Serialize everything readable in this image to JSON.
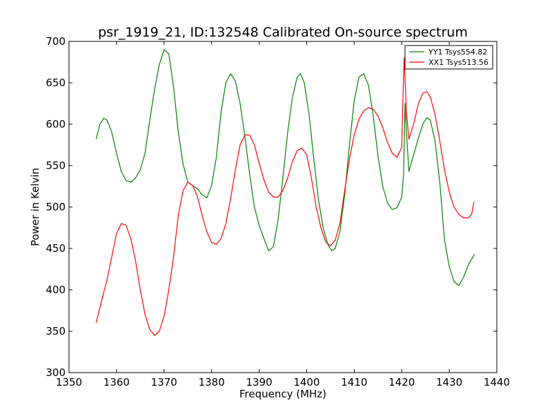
{
  "chart_data": {
    "type": "line",
    "title": "psr_1919_21, ID:132548 Calibrated On-source spectrum",
    "xlabel": "Frequency (MHz)",
    "ylabel": "Power in Kelvin",
    "xlim": [
      1350,
      1440
    ],
    "ylim": [
      300,
      700
    ],
    "xticks": [
      "1350",
      "1360",
      "1370",
      "1380",
      "1390",
      "1400",
      "1410",
      "1420",
      "1430",
      "1440"
    ],
    "yticks": [
      "300",
      "350",
      "400",
      "450",
      "500",
      "550",
      "600",
      "650",
      "700"
    ],
    "grid": false,
    "legend_position": "top-right",
    "series": [
      {
        "name": "YY1 Tsys554.82",
        "color": "#008000",
        "points": [
          [
            1355.7,
            582
          ],
          [
            1356.5,
            600
          ],
          [
            1357.3,
            607
          ],
          [
            1358,
            605
          ],
          [
            1359,
            590
          ],
          [
            1360,
            565
          ],
          [
            1361,
            543
          ],
          [
            1362,
            532
          ],
          [
            1363,
            530
          ],
          [
            1364,
            535
          ],
          [
            1365,
            545
          ],
          [
            1366,
            565
          ],
          [
            1367,
            605
          ],
          [
            1368,
            642
          ],
          [
            1369,
            672
          ],
          [
            1370,
            690
          ],
          [
            1371,
            685
          ],
          [
            1372,
            645
          ],
          [
            1373,
            590
          ],
          [
            1374,
            552
          ],
          [
            1375,
            530
          ],
          [
            1376,
            526
          ],
          [
            1377,
            522
          ],
          [
            1378,
            515
          ],
          [
            1379,
            511
          ],
          [
            1380,
            526
          ],
          [
            1381,
            560
          ],
          [
            1382,
            615
          ],
          [
            1383,
            650
          ],
          [
            1384,
            661
          ],
          [
            1385,
            652
          ],
          [
            1386,
            625
          ],
          [
            1387,
            585
          ],
          [
            1388,
            540
          ],
          [
            1389,
            500
          ],
          [
            1390,
            478
          ],
          [
            1391,
            462
          ],
          [
            1392,
            447
          ],
          [
            1393,
            452
          ],
          [
            1394,
            485
          ],
          [
            1395,
            535
          ],
          [
            1396,
            590
          ],
          [
            1397,
            632
          ],
          [
            1398,
            657
          ],
          [
            1398.7,
            661
          ],
          [
            1399.5,
            650
          ],
          [
            1400.5,
            612
          ],
          [
            1401.5,
            558
          ],
          [
            1402.5,
            508
          ],
          [
            1403.5,
            474
          ],
          [
            1404.5,
            454
          ],
          [
            1405.3,
            447
          ],
          [
            1406,
            450
          ],
          [
            1407,
            470
          ],
          [
            1408,
            515
          ],
          [
            1409,
            575
          ],
          [
            1410,
            628
          ],
          [
            1411,
            657
          ],
          [
            1412,
            661
          ],
          [
            1413,
            647
          ],
          [
            1414,
            610
          ],
          [
            1415,
            562
          ],
          [
            1416,
            525
          ],
          [
            1417,
            505
          ],
          [
            1418,
            497
          ],
          [
            1419,
            499
          ],
          [
            1420,
            512
          ],
          [
            1420.4,
            540
          ],
          [
            1420.7,
            625
          ],
          [
            1421,
            590
          ],
          [
            1421.5,
            543
          ],
          [
            1422.5,
            563
          ],
          [
            1423.5,
            583
          ],
          [
            1424.5,
            601
          ],
          [
            1425.3,
            608
          ],
          [
            1426,
            605
          ],
          [
            1427,
            580
          ],
          [
            1428,
            530
          ],
          [
            1429,
            460
          ],
          [
            1430,
            428
          ],
          [
            1431,
            410
          ],
          [
            1432,
            405
          ],
          [
            1433,
            415
          ],
          [
            1434,
            430
          ],
          [
            1435.3,
            443
          ]
        ]
      },
      {
        "name": "XX1 Tsys513.56",
        "color": "#ff0000",
        "points": [
          [
            1355.7,
            360
          ],
          [
            1357,
            390
          ],
          [
            1358,
            412
          ],
          [
            1359,
            440
          ],
          [
            1360,
            468
          ],
          [
            1361,
            480
          ],
          [
            1362,
            478
          ],
          [
            1363,
            462
          ],
          [
            1364,
            435
          ],
          [
            1365,
            400
          ],
          [
            1366,
            370
          ],
          [
            1367,
            352
          ],
          [
            1368,
            345
          ],
          [
            1369,
            350
          ],
          [
            1370,
            368
          ],
          [
            1371,
            400
          ],
          [
            1372,
            440
          ],
          [
            1373,
            490
          ],
          [
            1374,
            520
          ],
          [
            1375,
            530
          ],
          [
            1376,
            526
          ],
          [
            1377,
            513
          ],
          [
            1378,
            490
          ],
          [
            1379,
            470
          ],
          [
            1380,
            457
          ],
          [
            1381,
            455
          ],
          [
            1382,
            462
          ],
          [
            1383,
            480
          ],
          [
            1384,
            510
          ],
          [
            1385,
            545
          ],
          [
            1386,
            575
          ],
          [
            1387,
            587
          ],
          [
            1388,
            587
          ],
          [
            1389,
            575
          ],
          [
            1390,
            553
          ],
          [
            1391,
            533
          ],
          [
            1392,
            518
          ],
          [
            1393,
            512
          ],
          [
            1394,
            512
          ],
          [
            1395,
            520
          ],
          [
            1396,
            535
          ],
          [
            1397,
            555
          ],
          [
            1398,
            568
          ],
          [
            1399,
            571
          ],
          [
            1400,
            563
          ],
          [
            1401,
            535
          ],
          [
            1402,
            500
          ],
          [
            1403,
            475
          ],
          [
            1404,
            458
          ],
          [
            1405,
            453
          ],
          [
            1406,
            460
          ],
          [
            1407,
            480
          ],
          [
            1408,
            520
          ],
          [
            1409,
            558
          ],
          [
            1410,
            587
          ],
          [
            1411,
            606
          ],
          [
            1412,
            616
          ],
          [
            1413,
            620
          ],
          [
            1414,
            618
          ],
          [
            1415,
            610
          ],
          [
            1416,
            596
          ],
          [
            1417,
            578
          ],
          [
            1418,
            565
          ],
          [
            1419,
            560
          ],
          [
            1420,
            572
          ],
          [
            1420.3,
            640
          ],
          [
            1420.5,
            680
          ],
          [
            1421,
            615
          ],
          [
            1421.5,
            582
          ],
          [
            1422.5,
            600
          ],
          [
            1423.5,
            625
          ],
          [
            1424.5,
            638
          ],
          [
            1425.3,
            639
          ],
          [
            1426,
            633
          ],
          [
            1427,
            612
          ],
          [
            1428,
            580
          ],
          [
            1429,
            545
          ],
          [
            1430,
            518
          ],
          [
            1431,
            500
          ],
          [
            1432,
            491
          ],
          [
            1433,
            487
          ],
          [
            1434,
            487
          ],
          [
            1434.7,
            491
          ],
          [
            1435.2,
            506
          ]
        ]
      }
    ]
  }
}
